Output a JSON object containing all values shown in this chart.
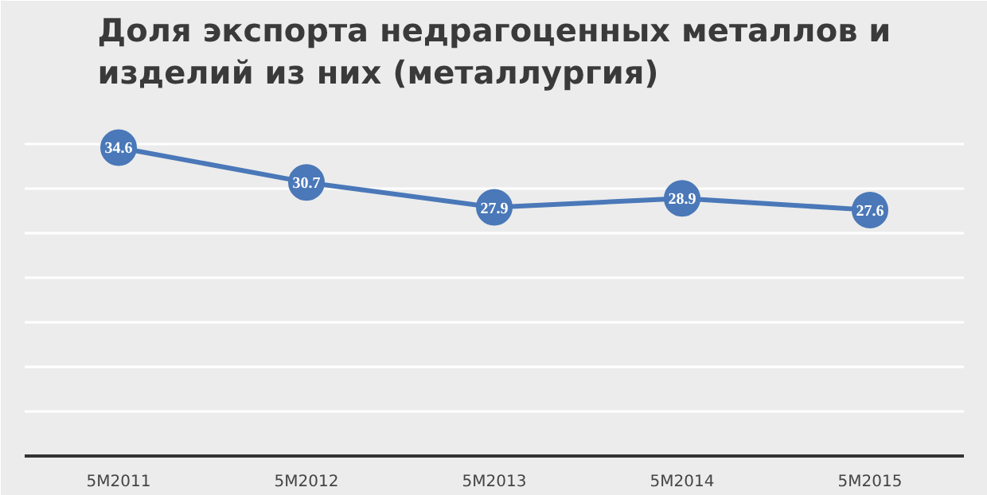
{
  "chart_data": {
    "type": "line",
    "title": "Доля экспорта недрагоценных металлов и изделий из них (металлургия)",
    "categories": [
      "5M2011",
      "5M2012",
      "5M2013",
      "5M2014",
      "5M2015"
    ],
    "series": [
      {
        "color": "#4a78b8",
        "values": [
          34.6,
          30.7,
          27.9,
          28.9,
          27.6
        ]
      }
    ],
    "ylim": [
      0,
      40
    ],
    "yticks": [
      {
        "value": 0,
        "label": null
      },
      {
        "value": 5,
        "label": null
      },
      {
        "value": 10,
        "label": null
      },
      {
        "value": 15,
        "label": null
      },
      {
        "value": 20,
        "label": null
      },
      {
        "value": 25,
        "label": null
      },
      {
        "value": 30,
        "label": null
      },
      {
        "value": 35,
        "label": null
      },
      {
        "value": 40,
        "label": null
      }
    ],
    "grid": "y",
    "tick_labels": "x",
    "marker": "circle",
    "line_style": "solid",
    "data_labels": true
  }
}
